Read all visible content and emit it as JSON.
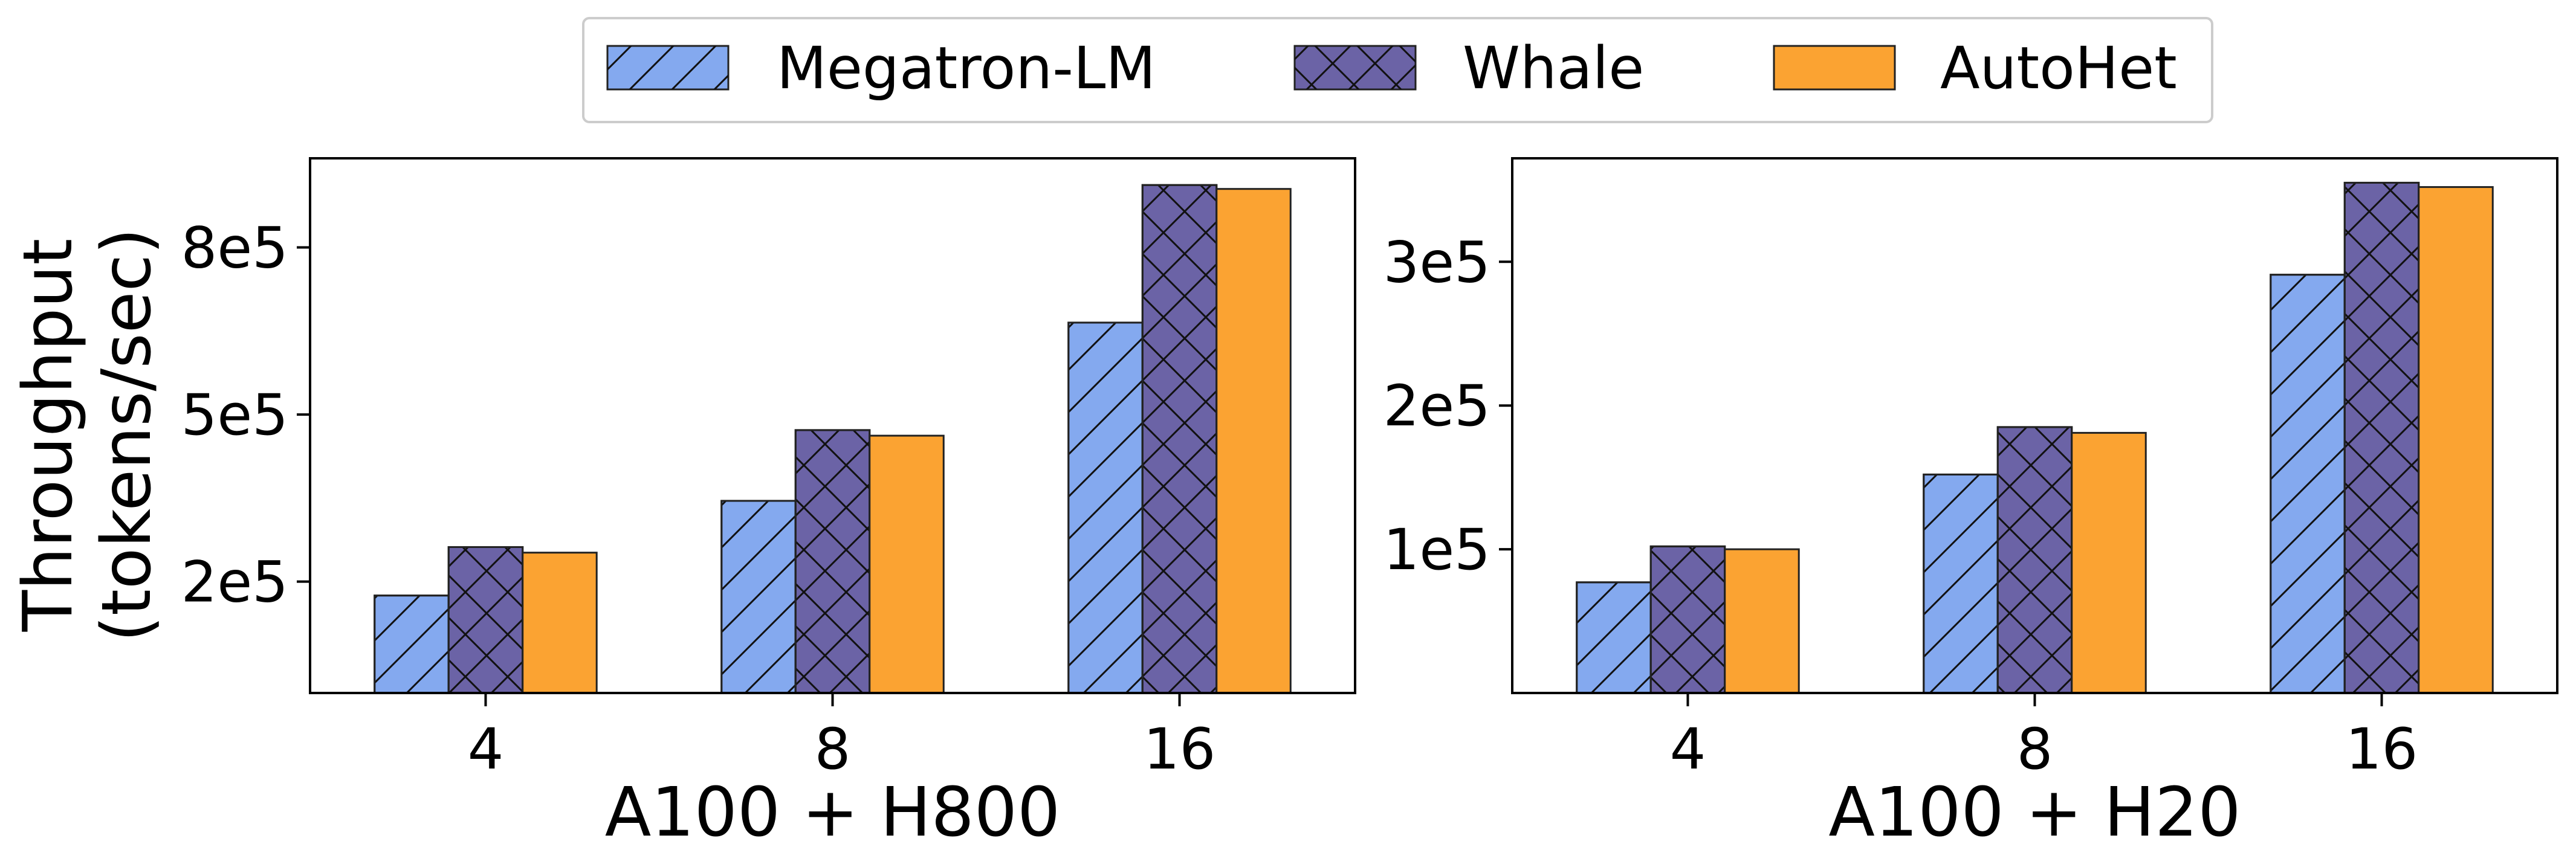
{
  "chart_data": [
    {
      "type": "bar",
      "panel": "left",
      "categories": [
        "4",
        "8",
        "16"
      ],
      "xlabel": "A100 + H800",
      "ylabel": [
        "Throughput",
        "(tokens/sec)"
      ],
      "ylim": [
        0,
        960000
      ],
      "yticks": [
        {
          "value": 200000,
          "label": "2e5"
        },
        {
          "value": 500000,
          "label": "5e5"
        },
        {
          "value": 800000,
          "label": "8e5"
        }
      ],
      "series": [
        {
          "name": "Megatron-LM",
          "values": [
            175000,
            345000,
            665000
          ]
        },
        {
          "name": "Whale",
          "values": [
            262000,
            472000,
            912000
          ]
        },
        {
          "name": "AutoHet",
          "values": [
            252000,
            462000,
            905000
          ]
        }
      ]
    },
    {
      "type": "bar",
      "panel": "right",
      "categories": [
        "4",
        "8",
        "16"
      ],
      "xlabel": "A100 + H20",
      "ylabel": "",
      "ylim": [
        0,
        372000
      ],
      "yticks": [
        {
          "value": 100000,
          "label": "1e5"
        },
        {
          "value": 200000,
          "label": "2e5"
        },
        {
          "value": 300000,
          "label": "3e5"
        }
      ],
      "series": [
        {
          "name": "Megatron-LM",
          "values": [
            77000,
            152000,
            291000
          ]
        },
        {
          "name": "Whale",
          "values": [
            102000,
            185000,
            355000
          ]
        },
        {
          "name": "AutoHet",
          "values": [
            100000,
            181000,
            352000
          ]
        }
      ]
    }
  ],
  "legend": {
    "placement": "top-center",
    "items": [
      {
        "label": "Megatron-LM",
        "color": "#84a9ef",
        "hatch": "diagonal"
      },
      {
        "label": "Whale",
        "color": "#6b63a6",
        "hatch": "crosshatch"
      },
      {
        "label": "AutoHet",
        "color": "#fba332",
        "hatch": "none"
      }
    ]
  },
  "colors": {
    "megatron": "#84a9ef",
    "whale": "#6b63a6",
    "autohet": "#fba332",
    "edge": "#222222"
  }
}
